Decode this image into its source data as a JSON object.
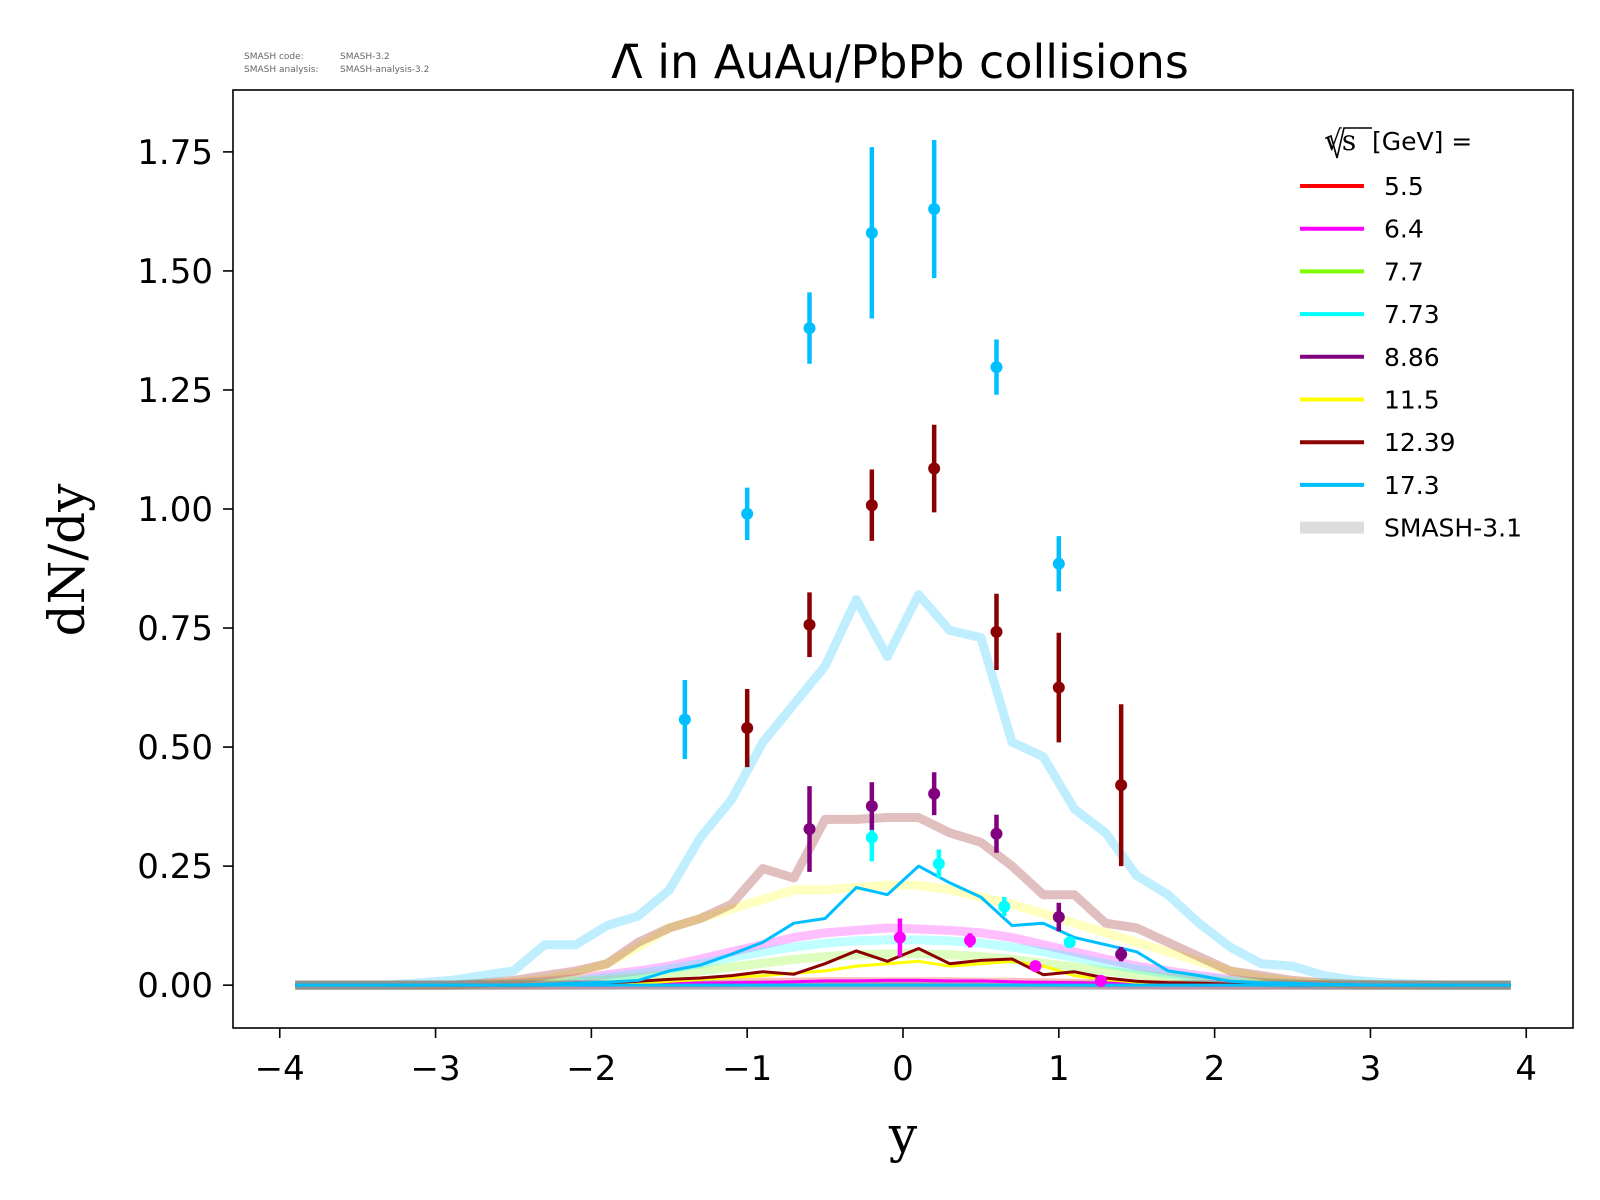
{
  "meta": {
    "code_label": "SMASH code:",
    "code_value": "SMASH-3.2",
    "analysis_label": "SMASH analysis:",
    "analysis_value": "SMASH-analysis-3.2"
  },
  "chart_data": {
    "type": "line",
    "title": "Λ̄ in AuAu/PbPb collisions",
    "xlabel": "y",
    "ylabel": "dN/dy",
    "xlim": [
      -4.3,
      4.3
    ],
    "ylim": [
      -0.09,
      1.88
    ],
    "xticks": [
      -4,
      -3,
      -2,
      -1,
      0,
      1,
      2,
      3,
      4
    ],
    "xtick_labels": [
      "−4",
      "−3",
      "−2",
      "−1",
      "0",
      "1",
      "2",
      "3",
      "4"
    ],
    "yticks": [
      0,
      0.25,
      0.5,
      0.75,
      1.0,
      1.25,
      1.5,
      1.75
    ],
    "ytick_labels": [
      "0.00",
      "0.25",
      "0.50",
      "0.75",
      "1.00",
      "1.25",
      "1.50",
      "1.75"
    ],
    "grid": false,
    "legend_position": "top-right",
    "legend_title_root": "√s",
    "legend_title_rest": "[GeV] =",
    "model_label": "SMASH-3.1",
    "model_color": "#dcdcdc",
    "model_x": [
      -3.9,
      -3.7,
      -3.5,
      -3.3,
      -3.1,
      -2.9,
      -2.7,
      -2.5,
      -2.3,
      -2.1,
      -1.9,
      -1.7,
      -1.5,
      -1.3,
      -1.1,
      -0.9,
      -0.7,
      -0.5,
      -0.3,
      -0.1,
      0.1,
      0.3,
      0.5,
      0.7,
      0.9,
      1.1,
      1.3,
      1.5,
      1.7,
      1.9,
      2.1,
      2.3,
      2.5,
      2.7,
      2.9,
      3.1,
      3.3,
      3.5,
      3.7,
      3.9
    ],
    "series": [
      {
        "name": "5.5",
        "color": "#ff0000",
        "model": [
          0,
          0,
          0,
          0,
          0,
          0,
          0,
          0,
          0,
          0.001,
          0.001,
          0.002,
          0.003,
          0.004,
          0.005,
          0.006,
          0.006,
          0.007,
          0.007,
          0.007,
          0.007,
          0.007,
          0.006,
          0.006,
          0.005,
          0.004,
          0.003,
          0.002,
          0.001,
          0.001,
          0,
          0,
          0,
          0,
          0,
          0,
          0,
          0,
          0,
          0
        ],
        "data": []
      },
      {
        "name": "6.4",
        "color": "#ff00ff",
        "model": [
          0,
          0,
          0,
          0,
          0,
          0,
          0.002,
          0.004,
          0.008,
          0.014,
          0.022,
          0.03,
          0.04,
          0.055,
          0.07,
          0.085,
          0.1,
          0.11,
          0.115,
          0.12,
          0.118,
          0.115,
          0.11,
          0.1,
          0.085,
          0.07,
          0.055,
          0.04,
          0.03,
          0.02,
          0.012,
          0.006,
          0.003,
          0.001,
          0,
          0,
          0,
          0,
          0,
          0
        ],
        "data": [
          {
            "x": -0.02,
            "y": 0.1,
            "err": 0.04
          },
          {
            "x": 0.43,
            "y": 0.094,
            "err": 0.015
          },
          {
            "x": 0.85,
            "y": 0.04,
            "err": 0.01
          },
          {
            "x": 1.27,
            "y": 0.009,
            "err": 0.005
          }
        ]
      },
      {
        "name": "7.7",
        "color": "#7cfc00",
        "model": [
          0,
          0,
          0,
          0,
          0,
          0,
          0.001,
          0.002,
          0.004,
          0.007,
          0.011,
          0.016,
          0.022,
          0.03,
          0.038,
          0.046,
          0.054,
          0.06,
          0.064,
          0.066,
          0.066,
          0.064,
          0.06,
          0.054,
          0.046,
          0.038,
          0.03,
          0.022,
          0.016,
          0.011,
          0.007,
          0.004,
          0.002,
          0.001,
          0,
          0,
          0,
          0,
          0,
          0
        ],
        "data": []
      },
      {
        "name": "7.73",
        "color": "#00ffff",
        "model": [
          0,
          0,
          0,
          0,
          0,
          0,
          0.001,
          0.003,
          0.006,
          0.01,
          0.016,
          0.024,
          0.034,
          0.045,
          0.058,
          0.07,
          0.08,
          0.088,
          0.093,
          0.095,
          0.095,
          0.093,
          0.088,
          0.08,
          0.07,
          0.058,
          0.045,
          0.034,
          0.024,
          0.016,
          0.01,
          0.006,
          0.003,
          0.001,
          0,
          0,
          0,
          0,
          0,
          0
        ],
        "data": [
          {
            "x": -0.2,
            "y": 0.31,
            "err": 0.05
          },
          {
            "x": 0.23,
            "y": 0.255,
            "err": 0.03
          },
          {
            "x": 0.65,
            "y": 0.165,
            "err": 0.02
          },
          {
            "x": 1.07,
            "y": 0.09,
            "err": 0.012
          }
        ]
      },
      {
        "name": "8.86",
        "color": "#800080",
        "model": [
          0,
          0,
          0,
          0,
          0,
          0,
          0,
          0,
          0,
          0,
          0,
          0,
          0,
          0,
          0,
          0,
          0,
          0,
          0,
          0,
          0,
          0,
          0,
          0,
          0,
          0,
          0,
          0,
          0,
          0,
          0,
          0,
          0,
          0,
          0,
          0,
          0,
          0,
          0,
          0
        ],
        "data": [
          {
            "x": -0.6,
            "y": 0.328,
            "err": 0.09
          },
          {
            "x": -0.2,
            "y": 0.376,
            "err": 0.05
          },
          {
            "x": 0.2,
            "y": 0.402,
            "err": 0.045
          },
          {
            "x": 0.6,
            "y": 0.318,
            "err": 0.04
          },
          {
            "x": 1.0,
            "y": 0.143,
            "err": 0.03
          },
          {
            "x": 1.4,
            "y": 0.065,
            "err": 0.015
          }
        ]
      },
      {
        "name": "11.5",
        "color": "#ffff00",
        "model": [
          0,
          0,
          0,
          0,
          0,
          0,
          0.003,
          0.006,
          0.012,
          0.025,
          0.045,
          0.08,
          0.12,
          0.14,
          0.16,
          0.18,
          0.2,
          0.2,
          0.205,
          0.21,
          0.21,
          0.2,
          0.185,
          0.17,
          0.15,
          0.13,
          0.11,
          0.09,
          0.07,
          0.05,
          0.03,
          0.015,
          0.008,
          0.004,
          0.002,
          0.001,
          0,
          0,
          0,
          0
        ],
        "data": []
      },
      {
        "name": "12.39",
        "color": "#8b0000",
        "model": [
          0,
          0,
          0,
          0,
          0,
          0,
          0.004,
          0.01,
          0.02,
          0.03,
          0.045,
          0.09,
          0.12,
          0.14,
          0.17,
          0.245,
          0.225,
          0.348,
          0.348,
          0.352,
          0.352,
          0.32,
          0.3,
          0.25,
          0.19,
          0.19,
          0.13,
          0.12,
          0.09,
          0.06,
          0.03,
          0.02,
          0.01,
          0.005,
          0.002,
          0.001,
          0,
          0,
          0,
          0
        ],
        "data": [
          {
            "x": -1.0,
            "y": 0.54,
            "err": 0.082
          },
          {
            "x": -0.6,
            "y": 0.757,
            "err": 0.068
          },
          {
            "x": -0.2,
            "y": 1.008,
            "err": 0.075
          },
          {
            "x": 0.2,
            "y": 1.085,
            "err": 0.092
          },
          {
            "x": 0.6,
            "y": 0.742,
            "err": 0.08
          },
          {
            "x": 1.0,
            "y": 0.625,
            "err": 0.115
          },
          {
            "x": 1.4,
            "y": 0.42,
            "err": 0.17
          }
        ]
      },
      {
        "name": "17.3",
        "color": "#00bfff",
        "model": [
          0,
          0,
          0,
          0,
          0.005,
          0.01,
          0.02,
          0.03,
          0.085,
          0.085,
          0.125,
          0.145,
          0.2,
          0.31,
          0.39,
          0.51,
          0.59,
          0.67,
          0.81,
          0.69,
          0.82,
          0.745,
          0.73,
          0.51,
          0.48,
          0.37,
          0.32,
          0.23,
          0.19,
          0.13,
          0.08,
          0.045,
          0.04,
          0.02,
          0.01,
          0.005,
          0.002,
          0,
          0,
          0
        ],
        "data": [
          {
            "x": -1.4,
            "y": 0.558,
            "err": 0.083
          },
          {
            "x": -1.0,
            "y": 0.99,
            "err": 0.055
          },
          {
            "x": -0.6,
            "y": 1.38,
            "err": 0.075
          },
          {
            "x": -0.2,
            "y": 1.58,
            "err": 0.18
          },
          {
            "x": 0.2,
            "y": 1.63,
            "err": 0.145
          },
          {
            "x": 0.6,
            "y": 1.298,
            "err": 0.058
          },
          {
            "x": 1.0,
            "y": 0.885,
            "err": 0.058
          }
        ]
      }
    ],
    "sim_x": [
      -3.9,
      -3.7,
      -3.5,
      -3.3,
      -3.1,
      -2.9,
      -2.7,
      -2.5,
      -2.3,
      -2.1,
      -1.9,
      -1.7,
      -1.5,
      -1.3,
      -1.1,
      -0.9,
      -0.7,
      -0.5,
      -0.3,
      -0.1,
      0.1,
      0.3,
      0.5,
      0.7,
      0.9,
      1.1,
      1.3,
      1.5,
      1.7,
      1.9,
      2.1,
      2.3,
      2.5,
      2.7,
      2.9,
      3.1,
      3.3,
      3.5,
      3.7,
      3.9
    ],
    "sim_lines": [
      {
        "series": "6.4",
        "y": [
          0,
          0,
          0,
          0,
          0,
          0,
          0,
          0,
          0,
          0,
          0,
          0.002,
          0.003,
          0.004,
          0.005,
          0.006,
          0.007,
          0.009,
          0.009,
          0.01,
          0.01,
          0.009,
          0.009,
          0.007,
          0.006,
          0.005,
          0.004,
          0.003,
          0.002,
          0,
          0,
          0,
          0,
          0,
          0,
          0,
          0,
          0,
          0,
          0
        ]
      },
      {
        "series": "11.5",
        "y": [
          0,
          0,
          0,
          0,
          0,
          0,
          0,
          0,
          0,
          0,
          0.002,
          0.004,
          0.008,
          0.012,
          0.016,
          0.02,
          0.025,
          0.03,
          0.04,
          0.045,
          0.05,
          0.04,
          0.045,
          0.05,
          0.04,
          0.02,
          0.012,
          0.006,
          0.004,
          0.002,
          0,
          0,
          0,
          0,
          0,
          0,
          0,
          0,
          0,
          0
        ]
      },
      {
        "series": "12.39",
        "y": [
          0,
          0,
          0,
          0,
          0,
          0,
          0,
          0,
          0,
          0.004,
          0.005,
          0.008,
          0.012,
          0.015,
          0.02,
          0.028,
          0.023,
          0.045,
          0.072,
          0.05,
          0.077,
          0.045,
          0.052,
          0.055,
          0.022,
          0.028,
          0.015,
          0.008,
          0.005,
          0.004,
          0.002,
          0.001,
          0,
          0,
          0,
          0,
          0,
          0,
          0,
          0
        ]
      },
      {
        "series": "17.3",
        "y": [
          0,
          0,
          0,
          0,
          0,
          0,
          0,
          0,
          0.002,
          0.004,
          0.006,
          0.01,
          0.03,
          0.042,
          0.065,
          0.09,
          0.13,
          0.14,
          0.205,
          0.19,
          0.25,
          0.215,
          0.185,
          0.125,
          0.13,
          0.1,
          0.085,
          0.07,
          0.03,
          0.02,
          0.008,
          0.005,
          0.004,
          0.002,
          0.001,
          0,
          0,
          0,
          0,
          0
        ]
      }
    ]
  }
}
